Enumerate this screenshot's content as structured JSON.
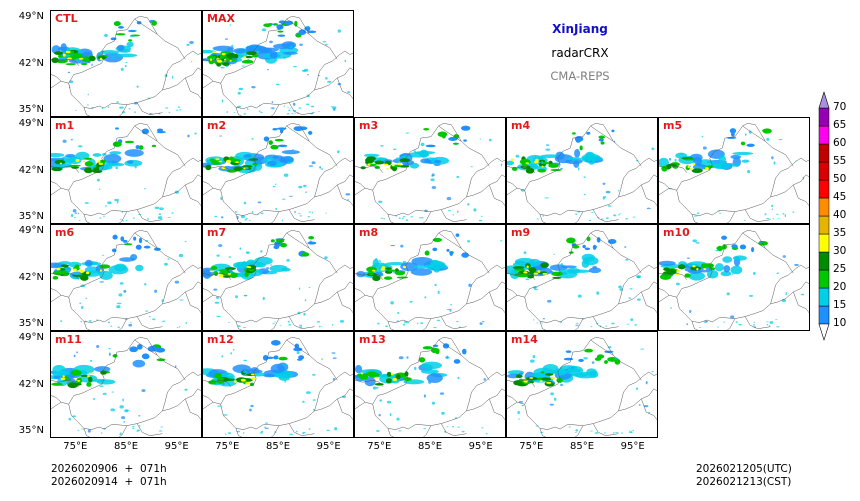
{
  "legend": {
    "region": "XinJiang",
    "product": "radarCRX",
    "system": "CMA-REPS",
    "region_color": "#1010cc",
    "system_color": "#808080"
  },
  "panels": [
    {
      "label": "CTL",
      "row": 0,
      "col": 0,
      "intensity": 1.0
    },
    {
      "label": "MAX",
      "row": 0,
      "col": 1,
      "intensity": 1.6
    },
    {
      "label": "m1",
      "row": 1,
      "col": 0,
      "intensity": 1.0
    },
    {
      "label": "m2",
      "row": 1,
      "col": 1,
      "intensity": 1.1
    },
    {
      "label": "m3",
      "row": 1,
      "col": 2,
      "intensity": 0.9
    },
    {
      "label": "m4",
      "row": 1,
      "col": 3,
      "intensity": 0.9
    },
    {
      "label": "m5",
      "row": 1,
      "col": 4,
      "intensity": 0.8
    },
    {
      "label": "m6",
      "row": 2,
      "col": 0,
      "intensity": 1.0
    },
    {
      "label": "m7",
      "row": 2,
      "col": 1,
      "intensity": 1.0
    },
    {
      "label": "m8",
      "row": 2,
      "col": 2,
      "intensity": 0.8
    },
    {
      "label": "m9",
      "row": 2,
      "col": 3,
      "intensity": 1.0
    },
    {
      "label": "m10",
      "row": 2,
      "col": 4,
      "intensity": 0.9
    },
    {
      "label": "m11",
      "row": 3,
      "col": 0,
      "intensity": 1.0
    },
    {
      "label": "m12",
      "row": 3,
      "col": 1,
      "intensity": 1.0
    },
    {
      "label": "m13",
      "row": 3,
      "col": 2,
      "intensity": 0.8
    },
    {
      "label": "m14",
      "row": 3,
      "col": 3,
      "intensity": 1.0
    }
  ],
  "lat_ticks": [
    "49°N",
    "42°N",
    "35°N"
  ],
  "lon_ticks": [
    "75°E",
    "85°E",
    "95°E"
  ],
  "init_time": {
    "utc_line": "2026020906  +  071h",
    "cst_line": "2026020914  +  071h"
  },
  "valid_time": {
    "utc": "2026021205(UTC)",
    "cst": "2026021213(CST)"
  },
  "colorbar": {
    "levels": [
      "10",
      "15",
      "20",
      "25",
      "30",
      "35",
      "40",
      "45",
      "50",
      "55",
      "60",
      "65",
      "70"
    ],
    "colors": [
      "#1e90ff",
      "#00cfe8",
      "#00c800",
      "#008c00",
      "#ffff00",
      "#e6b400",
      "#ff8c00",
      "#ff0000",
      "#d80000",
      "#c00000",
      "#ff00f0",
      "#9600b4",
      "#a890e0"
    ],
    "under_color": "#ffffff",
    "over_color": "#a890e0"
  },
  "label_color": "#e31a1c"
}
